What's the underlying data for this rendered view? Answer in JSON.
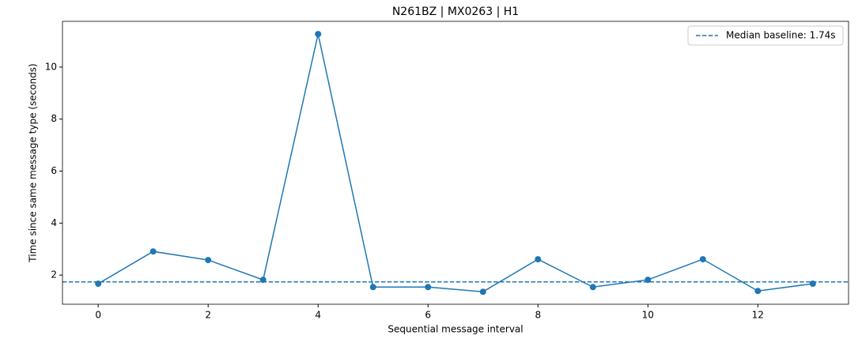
{
  "chart_data": {
    "type": "line",
    "title": "N261BZ | MX0263 | H1",
    "xlabel": "Sequential message interval",
    "ylabel": "Time since same message type (seconds)",
    "x": [
      0,
      1,
      2,
      3,
      4,
      5,
      6,
      7,
      8,
      9,
      10,
      11,
      12,
      13
    ],
    "series": [
      {
        "color": "#1f77b4",
        "values": [
          1.67,
          2.91,
          2.58,
          1.82,
          11.27,
          1.54,
          1.54,
          1.36,
          2.61,
          1.54,
          1.82,
          2.61,
          1.39,
          1.67
        ]
      }
    ],
    "hlines": [
      {
        "value": 1.74,
        "label": "Median baseline: 1.74s",
        "color": "#1f77b4",
        "style": "dashed"
      }
    ],
    "xlim": [
      -0.65,
      13.65
    ],
    "xticks": [
      0,
      2,
      4,
      6,
      8,
      10,
      12
    ],
    "ylim": [
      0.88,
      11.76
    ],
    "yticks": [
      2,
      4,
      6,
      8,
      10
    ],
    "legend": "upper right",
    "grid": false
  }
}
